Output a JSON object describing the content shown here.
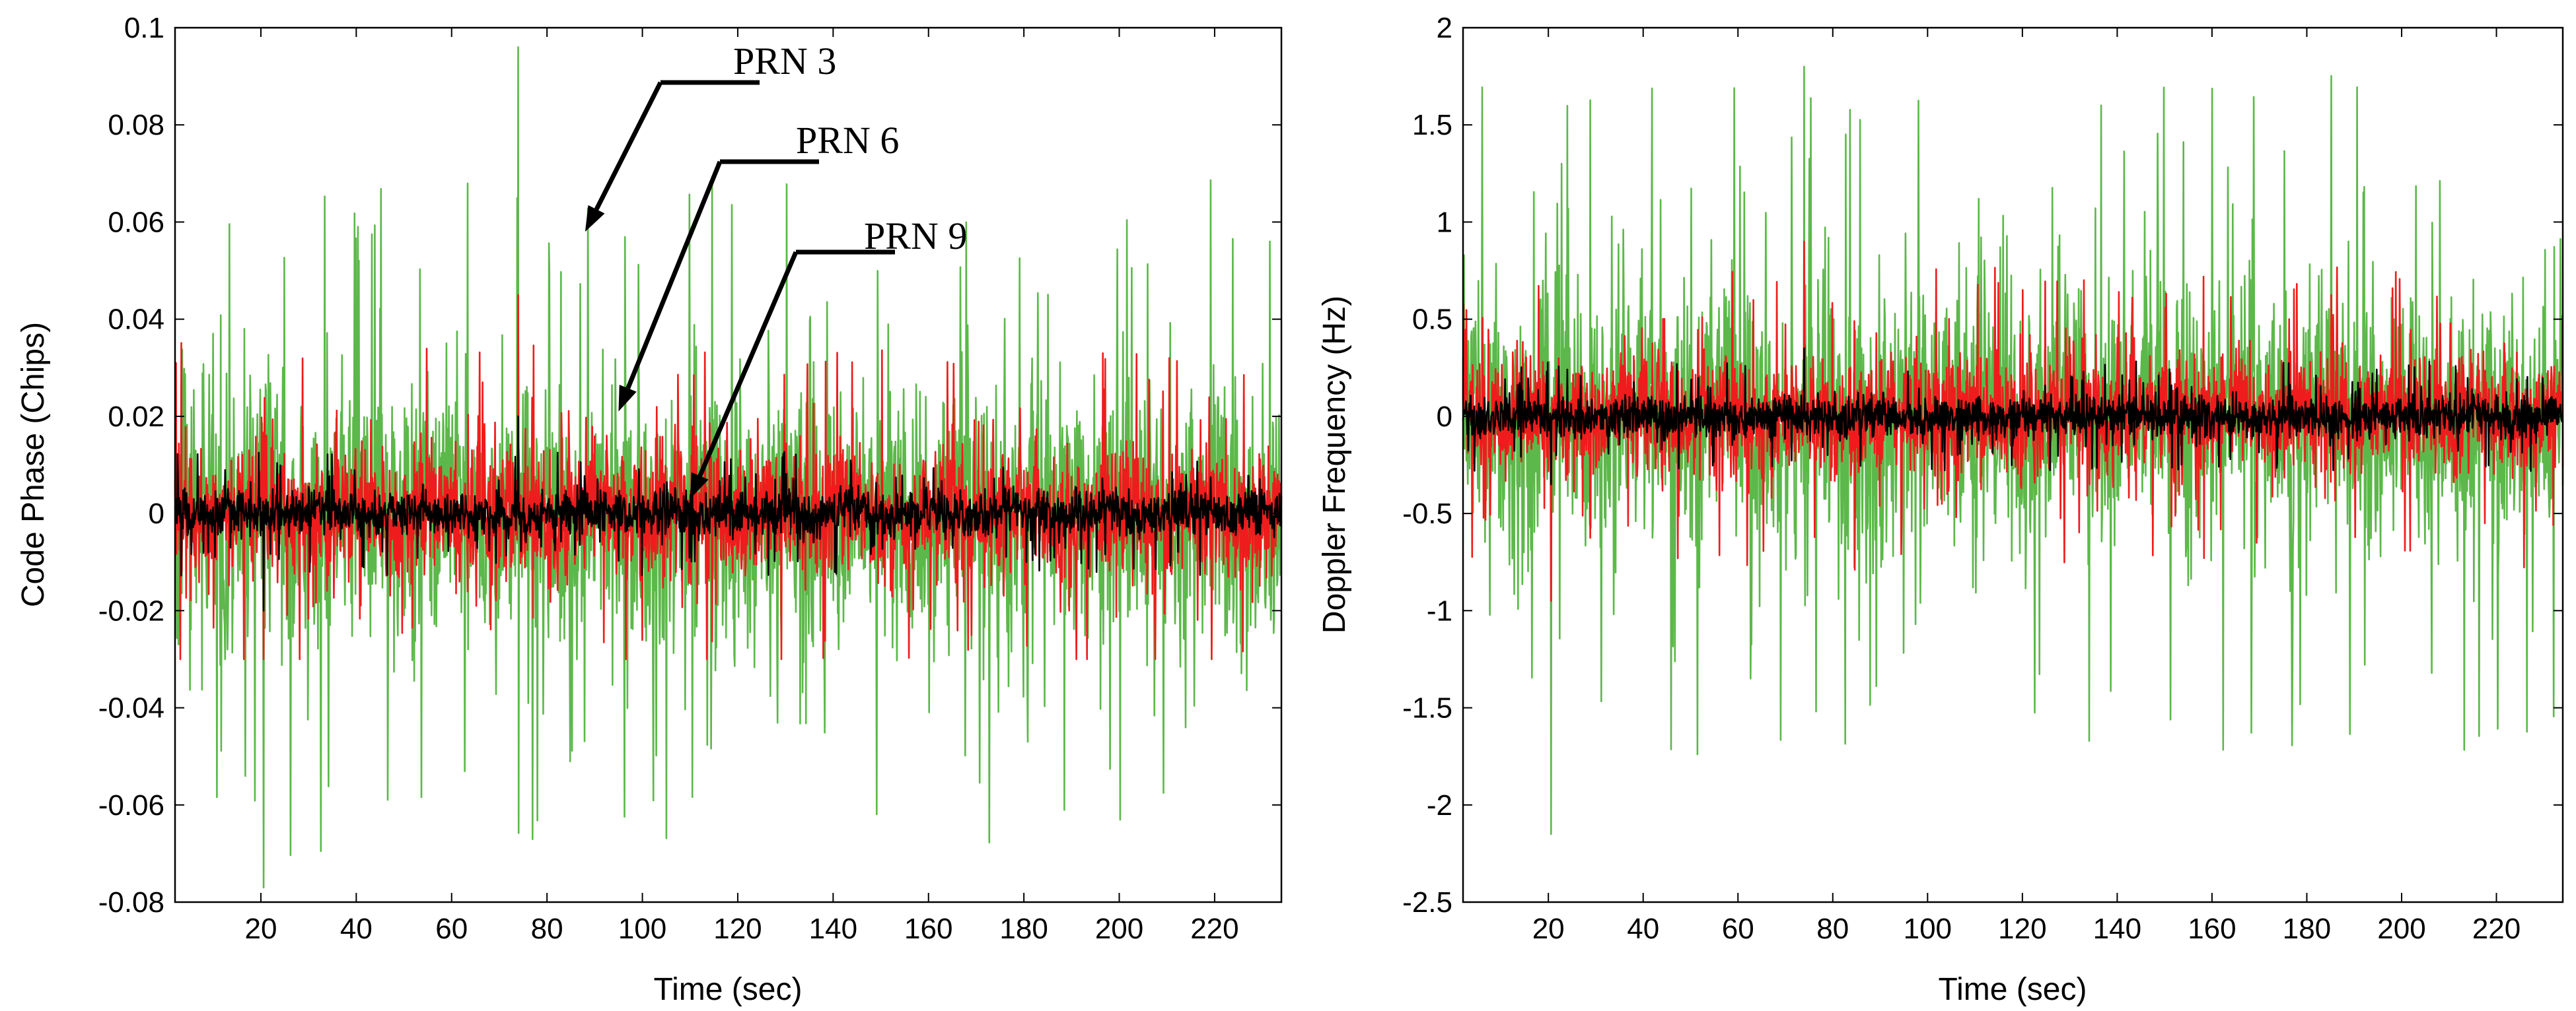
{
  "colors": {
    "PRN 3": "#5cb84a",
    "PRN 6": "#ee1c1c",
    "PRN 9": "#000000"
  },
  "chart_data": [
    {
      "type": "line",
      "xlabel": "Time (sec)",
      "ylabel": "Code Phase (Chips)",
      "xlim": [
        2,
        234
      ],
      "ylim": [
        -0.08,
        0.1
      ],
      "xticks": [
        20,
        40,
        60,
        80,
        100,
        120,
        140,
        160,
        180,
        200,
        220
      ],
      "yticks": [
        -0.08,
        -0.06,
        -0.04,
        -0.02,
        0,
        0.02,
        0.04,
        0.06,
        0.08,
        0.1
      ],
      "ytick_labels": [
        "-0.08",
        "-0.06",
        "-0.04",
        "-0.02",
        "0",
        "0.02",
        "0.04",
        "0.06",
        "0.08",
        "0.1"
      ],
      "grid": false,
      "legend": "none",
      "annotations": [
        {
          "text": "PRN 3",
          "arrow_to": [
            88,
            0.058
          ]
        },
        {
          "text": "PRN 6",
          "arrow_to": [
            95,
            0.021
          ]
        },
        {
          "text": "PRN 9",
          "arrow_to": [
            110,
            0.003
          ]
        }
      ],
      "series": [
        {
          "name": "PRN 3",
          "noise_std": 0.022,
          "peak_max": 0.096,
          "peak_min": -0.077
        },
        {
          "name": "PRN 6",
          "noise_std": 0.011,
          "peak_max": 0.045,
          "peak_min": -0.03
        },
        {
          "name": "PRN 9",
          "noise_std": 0.004,
          "peak_max": 0.02,
          "peak_min": -0.02
        }
      ]
    },
    {
      "type": "line",
      "xlabel": "Time (sec)",
      "ylabel": "Doppler Frequency (Hz)",
      "xlim": [
        2,
        234
      ],
      "ylim": [
        -2.5,
        2
      ],
      "xticks": [
        20,
        40,
        60,
        80,
        100,
        120,
        140,
        160,
        180,
        200,
        220
      ],
      "yticks": [
        -2.5,
        -2,
        -1.5,
        -1,
        -0.5,
        0,
        0.5,
        1,
        1.5,
        2
      ],
      "ytick_labels": [
        "-2.5",
        "-2",
        "-1.5",
        "-1",
        "-0.5",
        "0",
        "0.5",
        "1",
        "1.5",
        "2"
      ],
      "grid": false,
      "legend": "none",
      "series": [
        {
          "name": "PRN 3",
          "noise_std": 0.55,
          "peak_max": 1.8,
          "peak_min": -2.15
        },
        {
          "name": "PRN 6",
          "noise_std": 0.25,
          "peak_max": 0.9,
          "peak_min": -0.95
        },
        {
          "name": "PRN 9",
          "noise_std": 0.09,
          "peak_max": 0.35,
          "peak_min": -0.35
        }
      ]
    }
  ]
}
